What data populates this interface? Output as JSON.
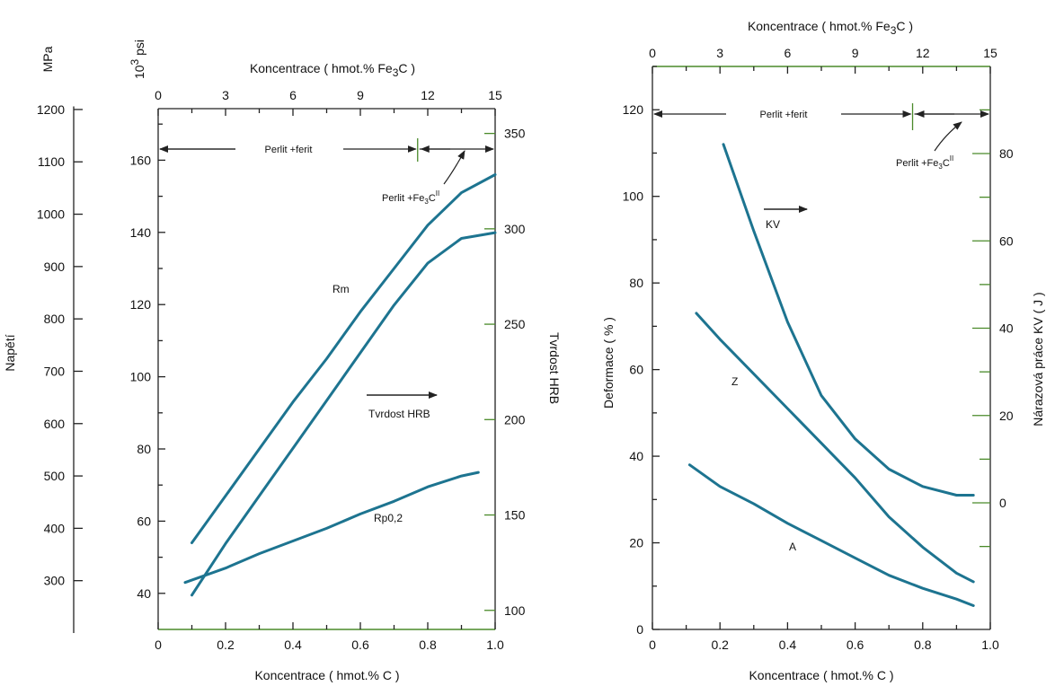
{
  "colors": {
    "curve": "#1d7490",
    "axis": "#222222",
    "accent": "#4a8a2a"
  },
  "chart_data": [
    {
      "type": "line",
      "panel": "left",
      "x_axis": {
        "label": "Koncentrace ( hmot.% C )",
        "range": [
          0,
          1.0
        ],
        "ticks": [
          "0",
          "0.2",
          "0.4",
          "0.6",
          "0.8",
          "1.0"
        ]
      },
      "x_top_axis": {
        "label": "Koncentrace ( hmot.% Fe3C )",
        "label_main": "Koncentrace ( hmot.% Fe",
        "label_sub": "3",
        "label_end": "C )",
        "range": [
          0,
          15
        ],
        "ticks": [
          "0",
          "3",
          "6",
          "9",
          "12",
          "15"
        ]
      },
      "y_axis_psi": {
        "unit": "10³ psi",
        "unit_base": "10",
        "unit_exp": "3",
        "unit_rest": "psi",
        "range": [
          30,
          175
        ],
        "ticks": [
          "40",
          "60",
          "80",
          "100",
          "120",
          "140",
          "160"
        ]
      },
      "y_axis_mpa": {
        "unit": "MPa",
        "label": "Napětí",
        "range": [
          206.8,
          1206.6
        ],
        "ticks": [
          "300",
          "400",
          "500",
          "600",
          "700",
          "800",
          "900",
          "1000",
          "1100",
          "1200"
        ]
      },
      "y_axis_right": {
        "label": "Tvrdost HRB",
        "range": [
          90,
          363
        ],
        "ticks": [
          "100",
          "150",
          "200",
          "250",
          "300",
          "350"
        ]
      },
      "series": [
        {
          "name": "Rm",
          "x": [
            0.1,
            0.2,
            0.3,
            0.4,
            0.5,
            0.6,
            0.7,
            0.8,
            0.9,
            1.0
          ],
          "y": [
            54,
            67,
            80,
            93,
            105,
            118,
            130,
            142,
            151,
            156
          ]
        },
        {
          "name": "Tvrdost HRB",
          "x": [
            0.1,
            0.2,
            0.3,
            0.4,
            0.5,
            0.6,
            0.7,
            0.8,
            0.9,
            1.0
          ],
          "y": [
            108,
            135,
            160,
            185,
            210,
            235,
            260,
            282,
            295,
            298
          ]
        },
        {
          "name": "Rp0,2",
          "x": [
            0.08,
            0.2,
            0.3,
            0.4,
            0.5,
            0.6,
            0.7,
            0.8,
            0.9,
            0.95
          ],
          "y": [
            43,
            47,
            51,
            54.5,
            58,
            62,
            65.5,
            69.5,
            72.5,
            73.5
          ]
        }
      ],
      "annotations": {
        "phase_left": "Perlit +ferit",
        "phase_right_main": "Perlit +Fe",
        "phase_right_sub": "3",
        "phase_right_end": "C",
        "phase_right_sup": "II",
        "hrb_arrow": "Tvrdost HRB",
        "rm": "Rm",
        "rp": "Rp0,2",
        "phase_boundary_x": 0.77
      }
    },
    {
      "type": "line",
      "panel": "right",
      "x_axis": {
        "label": "Koncentrace ( hmot.% C )",
        "range": [
          0,
          1.0
        ],
        "ticks": [
          "0",
          "0.2",
          "0.4",
          "0.6",
          "0.8",
          "1.0"
        ]
      },
      "x_top_axis": {
        "label": "Koncentrace ( hmot.% Fe3C )",
        "label_main": "Koncentrace ( hmot.% Fe",
        "label_sub": "3",
        "label_end": "C )",
        "range": [
          0,
          15
        ],
        "ticks": [
          "0",
          "3",
          "6",
          "9",
          "12",
          "15"
        ]
      },
      "y_axis_left": {
        "label": "Deformace ( % )",
        "range": [
          0,
          130
        ],
        "ticks": [
          "0",
          "20",
          "40",
          "60",
          "80",
          "100",
          "120"
        ]
      },
      "y_axis_right": {
        "label": "Nárazová práce KV ( J )",
        "range": [
          -28,
          100
        ],
        "ticks": [
          "0",
          "20",
          "40",
          "60",
          "80"
        ]
      },
      "series": [
        {
          "name": "KV",
          "x": [
            0.21,
            0.3,
            0.4,
            0.5,
            0.6,
            0.7,
            0.8,
            0.9,
            0.95
          ],
          "y": [
            112,
            92,
            71,
            54,
            44,
            37,
            33,
            31,
            31
          ]
        },
        {
          "name": "Z",
          "x": [
            0.13,
            0.2,
            0.3,
            0.4,
            0.5,
            0.6,
            0.7,
            0.8,
            0.9,
            0.95
          ],
          "y": [
            73,
            67,
            59,
            51,
            43,
            35,
            26,
            19,
            13,
            11
          ]
        },
        {
          "name": "A",
          "x": [
            0.11,
            0.2,
            0.3,
            0.4,
            0.5,
            0.6,
            0.7,
            0.8,
            0.9,
            0.95
          ],
          "y": [
            38,
            33,
            29,
            24.5,
            20.5,
            16.5,
            12.5,
            9.5,
            7,
            5.5
          ]
        }
      ],
      "annotations": {
        "phase_left": "Perlit +ferit",
        "phase_right_main": "Perlit +Fe",
        "phase_right_sub": "3",
        "phase_right_end": "C",
        "phase_right_sup": "II",
        "kv_arrow": "KV",
        "z": "Z",
        "a": "A",
        "phase_boundary_x": 0.77
      }
    }
  ]
}
